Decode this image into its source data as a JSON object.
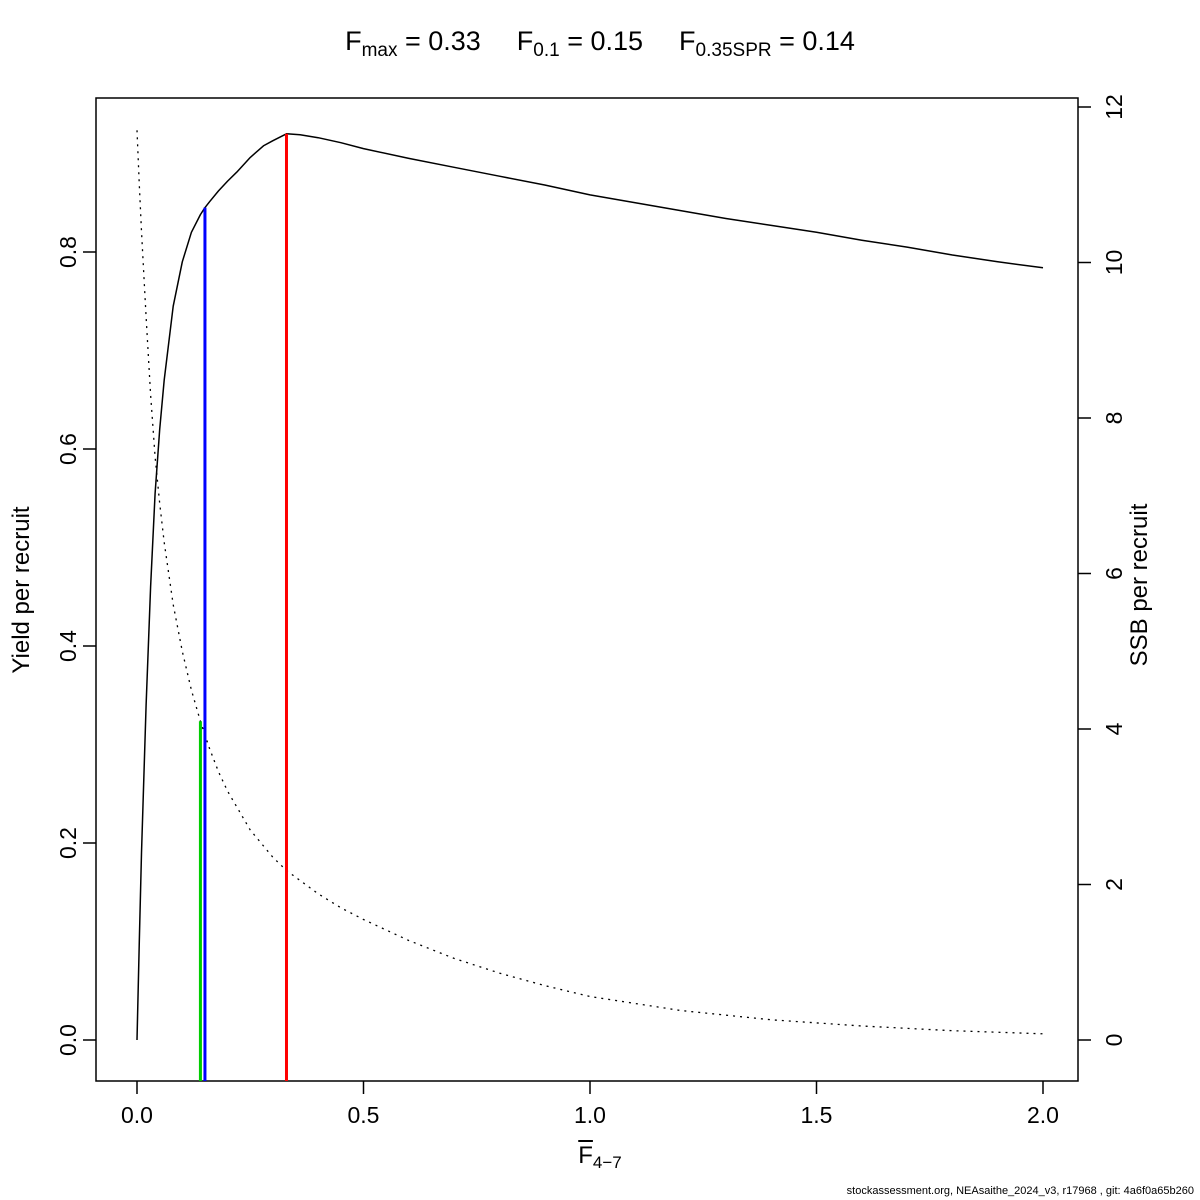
{
  "title": {
    "parts": [
      {
        "base": "F",
        "sub": "max",
        "eq": " = 0.33"
      },
      {
        "base": "F",
        "sub": "0.1",
        "eq": " = 0.15"
      },
      {
        "base": "F",
        "sub": "0.35SPR",
        "eq": " = 0.14"
      }
    ]
  },
  "axes": {
    "x_label_base": "F",
    "x_label_sub": "4−7",
    "y_left_label": "Yield per recruit",
    "y_right_label": "SSB per recruit"
  },
  "footer": "stockassessment.org, NEAsaithe_2024_v3, r17968 , git: 4a6f0a65b260",
  "chart_data": {
    "type": "line",
    "title": "Fmax = 0.33   F0.1 = 0.15   F0.35SPR = 0.14",
    "xlabel": "Fbar(4-7)",
    "grid": false,
    "legend": "none",
    "xlim": [
      0,
      2
    ],
    "x_ticks": [
      0.0,
      0.5,
      1.0,
      1.5,
      2.0
    ],
    "x_tick_labels": [
      "0.0",
      "0.5",
      "1.0",
      "1.5",
      "2.0"
    ],
    "y_left": {
      "label": "Yield per recruit",
      "lim": [
        0,
        0.96
      ],
      "ticks": [
        0.0,
        0.2,
        0.4,
        0.6,
        0.8
      ],
      "tick_labels": [
        "0.0",
        "0.2",
        "0.4",
        "0.6",
        "0.8"
      ]
    },
    "y_right": {
      "label": "SSB per recruit",
      "lim": [
        0,
        12.1
      ],
      "ticks": [
        0,
        2,
        4,
        6,
        8,
        10,
        12
      ],
      "tick_labels": [
        "0",
        "2",
        "4",
        "6",
        "8",
        "10",
        "12"
      ]
    },
    "series": [
      {
        "name": "yield-per-recruit",
        "axis": "left",
        "style": "solid",
        "color": "#000000",
        "x": [
          0,
          0.005,
          0.01,
          0.02,
          0.03,
          0.04,
          0.05,
          0.06,
          0.08,
          0.1,
          0.12,
          0.14,
          0.15,
          0.16,
          0.18,
          0.2,
          0.22,
          0.25,
          0.28,
          0.3,
          0.33,
          0.36,
          0.4,
          0.45,
          0.5,
          0.6,
          0.7,
          0.8,
          0.9,
          1.0,
          1.1,
          1.2,
          1.3,
          1.4,
          1.5,
          1.6,
          1.7,
          1.8,
          1.9,
          2.0
        ],
        "y": [
          0,
          0.1,
          0.19,
          0.34,
          0.46,
          0.555,
          0.62,
          0.67,
          0.745,
          0.79,
          0.82,
          0.838,
          0.845,
          0.851,
          0.862,
          0.872,
          0.881,
          0.896,
          0.908,
          0.913,
          0.92,
          0.919,
          0.916,
          0.911,
          0.905,
          0.895,
          0.886,
          0.877,
          0.868,
          0.858,
          0.85,
          0.842,
          0.834,
          0.827,
          0.82,
          0.812,
          0.805,
          0.797,
          0.79,
          0.784
        ]
      },
      {
        "name": "ssb-per-recruit",
        "axis": "right",
        "style": "dotted",
        "color": "#000000",
        "x": [
          0,
          0.005,
          0.01,
          0.02,
          0.03,
          0.04,
          0.05,
          0.06,
          0.08,
          0.1,
          0.12,
          0.14,
          0.16,
          0.18,
          0.2,
          0.25,
          0.3,
          0.33,
          0.4,
          0.45,
          0.5,
          0.6,
          0.7,
          0.8,
          0.9,
          1.0,
          1.2,
          1.4,
          1.6,
          1.8,
          2.0
        ],
        "y": [
          11.7,
          11.0,
          10.4,
          9.3,
          8.3,
          7.5,
          6.9,
          6.4,
          5.6,
          5.0,
          4.5,
          4.1,
          3.75,
          3.45,
          3.2,
          2.7,
          2.35,
          2.18,
          1.88,
          1.7,
          1.55,
          1.28,
          1.05,
          0.86,
          0.7,
          0.56,
          0.38,
          0.26,
          0.18,
          0.12,
          0.08
        ]
      }
    ],
    "reference_lines": [
      {
        "name": "Fmax",
        "x": 0.33,
        "value_label": "0.33",
        "top_value": 0.92,
        "top_axis": "left",
        "color": "#ff0000"
      },
      {
        "name": "F0.1",
        "x": 0.15,
        "value_label": "0.15",
        "top_value": 0.845,
        "top_axis": "left",
        "color": "#0000ff"
      },
      {
        "name": "F0.35SPR",
        "x": 0.14,
        "value_label": "0.14",
        "top_value": 4.1,
        "top_axis": "right",
        "color": "#00cc00"
      }
    ]
  }
}
